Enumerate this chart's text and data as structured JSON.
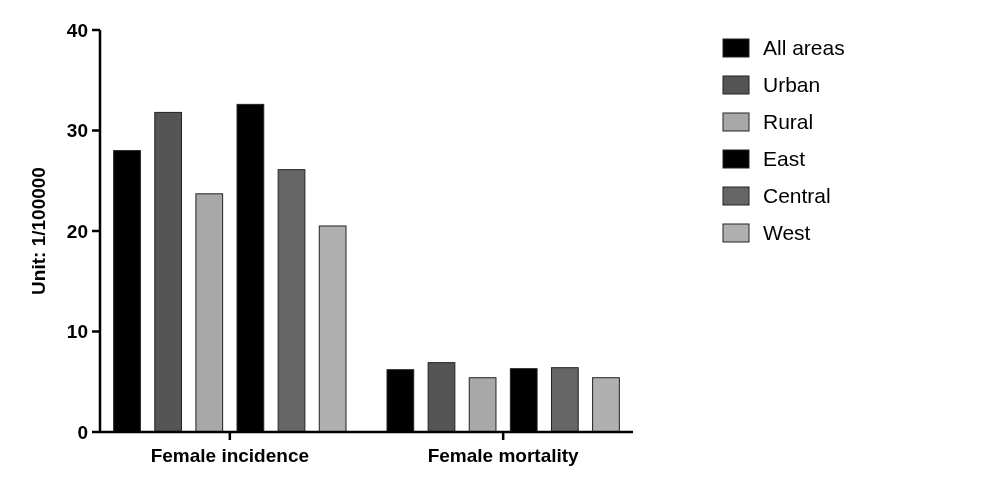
{
  "chart_data": {
    "type": "bar",
    "ylabel": "Unit: 1/100000",
    "categories": [
      "Female incidence",
      "Female mortality"
    ],
    "series": [
      {
        "name": "All areas",
        "color": "#000000",
        "values": [
          28,
          6.2
        ]
      },
      {
        "name": "Urban",
        "color": "#555555",
        "values": [
          31.8,
          6.9
        ]
      },
      {
        "name": "Rural",
        "color": "#a8a8a8",
        "values": [
          23.7,
          5.4
        ]
      },
      {
        "name": "East",
        "color": "#000000",
        "values": [
          32.6,
          6.3
        ]
      },
      {
        "name": "Central",
        "color": "#666666",
        "values": [
          26.1,
          6.4
        ]
      },
      {
        "name": "West",
        "color": "#b0b0b0",
        "values": [
          20.5,
          5.4
        ]
      }
    ],
    "ylim": [
      0,
      40
    ],
    "yticks": [
      0,
      10,
      20,
      30,
      40
    ],
    "grid": false,
    "legend": "right"
  }
}
